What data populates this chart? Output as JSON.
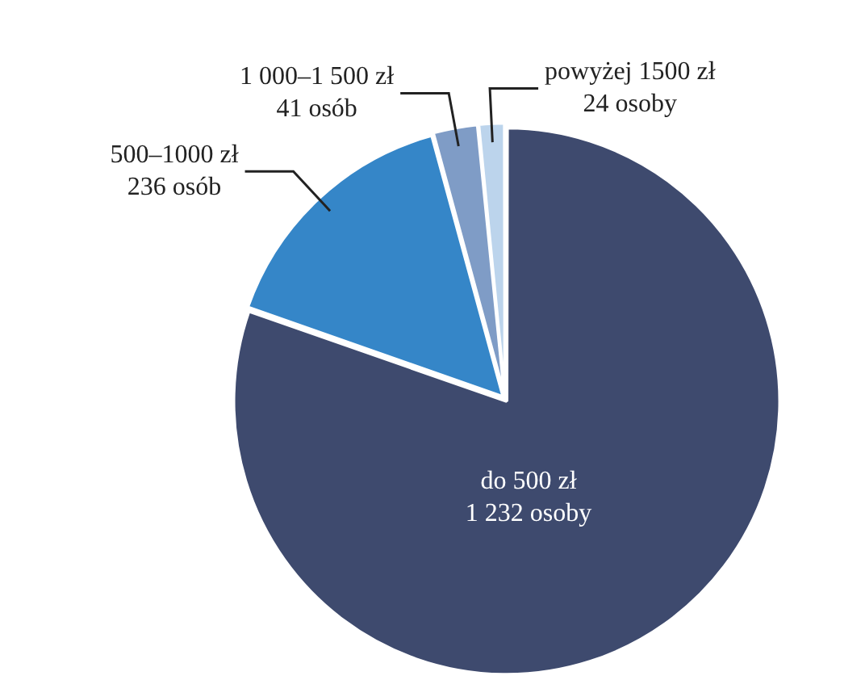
{
  "chart_data": {
    "type": "pie",
    "categories": [
      "do 500 zł",
      "500–1000 zł",
      "1 000–1 500 zł",
      "powyżej 1500 zł"
    ],
    "values": [
      1232,
      236,
      41,
      24
    ],
    "colors": [
      "#3e4a6e",
      "#3586c8",
      "#7f9cc6",
      "#bcd4ec"
    ],
    "value_labels": [
      "1 232 osoby",
      "236 osób",
      "41 osób",
      "24 osoby"
    ],
    "legend": false
  }
}
